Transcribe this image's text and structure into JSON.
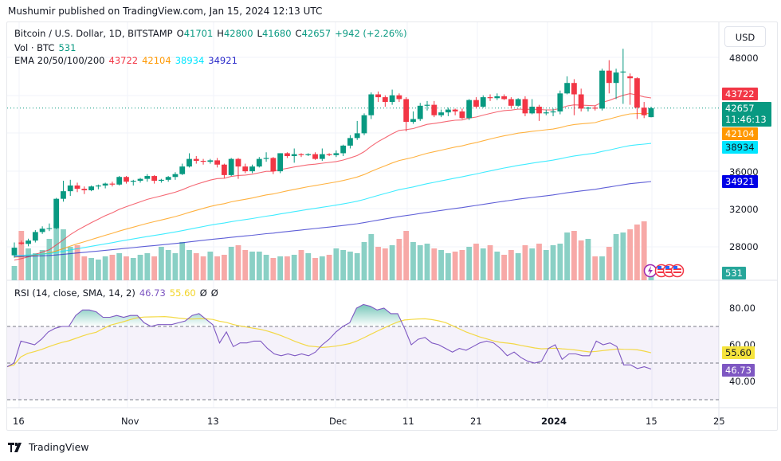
{
  "header": {
    "published": "Mushumir published on TradingView.com, Jan 15, 2024 12:13 UTC"
  },
  "legend": {
    "symbol": "Bitcoin / U.S. Dollar, 1D, BITSTAMP",
    "o_label": "O",
    "o_value": "41701",
    "h_label": "H",
    "h_value": "42800",
    "l_label": "L",
    "l_value": "41680",
    "c_label": "C",
    "c_value": "42657",
    "change": "+942 (+2.26%)",
    "vol_label": "Vol · BTC",
    "vol_value": "531",
    "ema_label": "EMA 20/50/100/200",
    "ema20": "43722",
    "ema50": "42104",
    "ema100": "38934",
    "ema200": "34921",
    "rsi_label": "RSI (14, close, SMA, 14, 2)",
    "rsi_value": "46.73",
    "rsi_sma_value": "55.60",
    "rsi_extra1": "Ø",
    "rsi_extra2": "Ø"
  },
  "price_axis": {
    "currency": "USD",
    "ticks": [
      "48000",
      "36000",
      "32000",
      "28000"
    ],
    "tags": {
      "ema20": "43722",
      "last_price": "42657",
      "countdown": "11:46:13",
      "ema50": "42104",
      "ema100": "38934",
      "ema200": "34921",
      "volume": "531"
    }
  },
  "rsi_axis": {
    "ticks": [
      "80.00",
      "60.00",
      "40.00"
    ],
    "tags": {
      "sma": "55.60",
      "rsi": "46.73"
    }
  },
  "time_axis": {
    "labels": [
      "16",
      "Nov",
      "13",
      "Dec",
      "11",
      "21",
      "2024",
      "15",
      "25"
    ]
  },
  "footer": {
    "brand": "TradingView"
  },
  "colors": {
    "up": "#089981",
    "down": "#f23645",
    "ema20": "#f23645",
    "ema50": "#ff9800",
    "ema100": "#00e5ff",
    "ema200": "#2a2aca",
    "rsi": "#7e57c2",
    "rsi_sma": "#f2d426"
  },
  "chart_data": {
    "type": "candlestick",
    "title": "Bitcoin / U.S. Dollar, 1D, BITSTAMP",
    "x_range": [
      "2023-10-16",
      "2024-01-15"
    ],
    "ylim": [
      26500,
      50000
    ],
    "price_ticks": [
      28000,
      32000,
      36000,
      48000
    ],
    "candles": [
      [
        27150,
        27950,
        26900,
        28500
      ],
      [
        28500,
        28350,
        28250,
        28700
      ],
      [
        28350,
        28700,
        28100,
        28900
      ],
      [
        28700,
        29600,
        28500,
        29800
      ],
      [
        29600,
        29950,
        29400,
        30200
      ],
      [
        29950,
        30000,
        29700,
        30500
      ],
      [
        30000,
        33100,
        29900,
        33200
      ],
      [
        33100,
        33900,
        32800,
        35000
      ],
      [
        33900,
        34500,
        33400,
        35100
      ],
      [
        34500,
        34150,
        33800,
        34800
      ],
      [
        34150,
        34000,
        33600,
        34400
      ],
      [
        34000,
        34400,
        33900,
        34500
      ],
      [
        34400,
        34500,
        34100,
        34600
      ],
      [
        34500,
        34700,
        34200,
        34800
      ],
      [
        34700,
        34600,
        34400,
        34900
      ],
      [
        34600,
        35400,
        34500,
        35500
      ],
      [
        35400,
        34900,
        34700,
        35500
      ],
      [
        34900,
        35000,
        34500,
        35100
      ],
      [
        35000,
        35200,
        34800,
        35300
      ],
      [
        35200,
        35500,
        34900,
        35700
      ],
      [
        35500,
        35000,
        34700,
        35600
      ],
      [
        35000,
        35100,
        34800,
        35200
      ],
      [
        35100,
        35400,
        34900,
        35500
      ],
      [
        35400,
        35700,
        35100,
        35900
      ],
      [
        35700,
        36500,
        35600,
        36800
      ],
      [
        36500,
        37300,
        36400,
        37900
      ],
      [
        37300,
        37100,
        36800,
        37600
      ],
      [
        37100,
        37000,
        36700,
        37300
      ],
      [
        37000,
        37150,
        36800,
        37300
      ],
      [
        37150,
        36700,
        36400,
        37400
      ],
      [
        36700,
        35600,
        35300,
        36800
      ],
      [
        35600,
        37300,
        35500,
        37400
      ],
      [
        37300,
        36500,
        35200,
        37400
      ],
      [
        36500,
        36000,
        35800,
        36800
      ],
      [
        36000,
        36500,
        35800,
        36700
      ],
      [
        36500,
        37300,
        36400,
        37500
      ],
      [
        37300,
        37400,
        37000,
        38000
      ],
      [
        37400,
        36000,
        35700,
        37500
      ],
      [
        36000,
        37900,
        35800,
        37900
      ],
      [
        37900,
        37600,
        37400,
        38000
      ],
      [
        37600,
        37800,
        36900,
        38400
      ],
      [
        37800,
        37700,
        37500,
        37900
      ],
      [
        37700,
        37800,
        37600,
        37900
      ],
      [
        37800,
        37300,
        37200,
        38000
      ],
      [
        37300,
        37800,
        37100,
        38400
      ],
      [
        37800,
        37700,
        37600,
        37900
      ],
      [
        37700,
        37900,
        37500,
        38200
      ],
      [
        37900,
        38700,
        37600,
        38800
      ],
      [
        38700,
        39500,
        38400,
        39800
      ],
      [
        39500,
        40000,
        39300,
        41300
      ],
      [
        40000,
        41900,
        39800,
        42100
      ],
      [
        41900,
        44100,
        41500,
        44300
      ],
      [
        44100,
        43800,
        43300,
        44400
      ],
      [
        43800,
        43300,
        42800,
        44000
      ],
      [
        43300,
        44000,
        43000,
        44600
      ],
      [
        44000,
        43600,
        43300,
        44200
      ],
      [
        43600,
        41200,
        40200,
        43800
      ],
      [
        41200,
        41500,
        41000,
        42300
      ],
      [
        41500,
        42900,
        41300,
        43200
      ],
      [
        42900,
        43000,
        42400,
        43400
      ],
      [
        43000,
        41900,
        41700,
        43400
      ],
      [
        41900,
        42200,
        41700,
        42500
      ],
      [
        42200,
        42500,
        41800,
        42700
      ],
      [
        42500,
        42300,
        41900,
        42600
      ],
      [
        42300,
        41600,
        41500,
        42600
      ],
      [
        41600,
        43500,
        41400,
        43600
      ],
      [
        43500,
        42800,
        42600,
        43800
      ],
      [
        42800,
        43800,
        42700,
        44000
      ],
      [
        43800,
        43700,
        43400,
        44100
      ],
      [
        43700,
        43900,
        43500,
        44200
      ],
      [
        43900,
        43600,
        43500,
        44100
      ],
      [
        43600,
        42900,
        42600,
        43800
      ],
      [
        42900,
        43600,
        42800,
        43700
      ],
      [
        43600,
        42100,
        41800,
        43900
      ],
      [
        42100,
        42800,
        42000,
        43600
      ],
      [
        42800,
        42100,
        41300,
        43000
      ],
      [
        42100,
        42200,
        41900,
        42500
      ],
      [
        42200,
        42300,
        41800,
        42600
      ],
      [
        42300,
        44200,
        42000,
        44500
      ],
      [
        44200,
        45300,
        44100,
        46000
      ],
      [
        45300,
        44100,
        41900,
        45700
      ],
      [
        44100,
        42600,
        42300,
        44700
      ],
      [
        42600,
        42700,
        42300,
        42800
      ],
      [
        42700,
        42600,
        42400,
        42900
      ],
      [
        42600,
        46600,
        42400,
        46800
      ],
      [
        46600,
        45300,
        44200,
        47700
      ],
      [
        45300,
        46400,
        43600,
        46800
      ],
      [
        46400,
        46500,
        43100,
        48900
      ],
      [
        46000,
        45800,
        43000,
        46300
      ],
      [
        45800,
        42700,
        41500,
        45900
      ],
      [
        42700,
        41900,
        41600,
        43300
      ],
      [
        41701,
        42657,
        41680,
        42800
      ]
    ],
    "volume_btc_scale": "relative",
    "ema": {
      "20": {
        "last": 43722
      },
      "50": {
        "last": 42104
      },
      "100": {
        "last": 38934
      },
      "200": {
        "last": 34921
      }
    },
    "rsi": {
      "period": 14,
      "sma_period": 14,
      "last": 46.73,
      "sma_last": 55.6,
      "upper_band": 70,
      "middle_band": 50,
      "lower_band": 30,
      "ticks": [
        80,
        60,
        40
      ]
    }
  }
}
